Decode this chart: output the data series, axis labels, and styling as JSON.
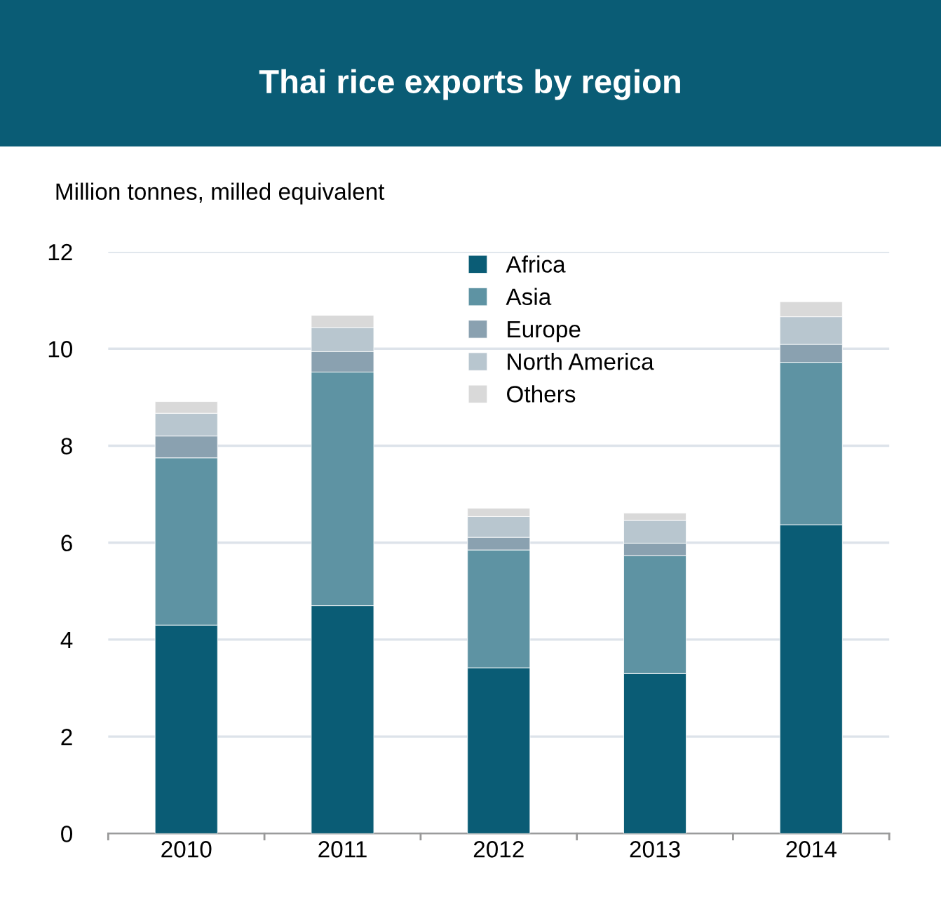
{
  "chart_data": {
    "type": "bar",
    "stacked": true,
    "title": "Thai rice exports by region",
    "ylabel": "Million tonnes, milled equivalent",
    "categories": [
      "2010",
      "2011",
      "2012",
      "2013",
      "2014"
    ],
    "series": [
      {
        "name": "Africa",
        "color": "#0a5c75",
        "values": [
          4.3,
          4.7,
          3.42,
          3.3,
          6.37
        ]
      },
      {
        "name": "Asia",
        "color": "#5e93a3",
        "values": [
          3.45,
          4.82,
          2.43,
          2.43,
          3.35
        ]
      },
      {
        "name": "Europe",
        "color": "#8aa1b0",
        "values": [
          0.45,
          0.42,
          0.26,
          0.26,
          0.37
        ]
      },
      {
        "name": "North America",
        "color": "#b8c6cf",
        "values": [
          0.47,
          0.5,
          0.43,
          0.47,
          0.57
        ]
      },
      {
        "name": "Others",
        "color": "#d9d9d9",
        "values": [
          0.24,
          0.25,
          0.17,
          0.15,
          0.31
        ]
      }
    ],
    "ylim": [
      0,
      12
    ],
    "yticks": [
      0,
      2,
      4,
      6,
      8,
      10,
      12
    ],
    "grid": "y",
    "legend": "top"
  }
}
